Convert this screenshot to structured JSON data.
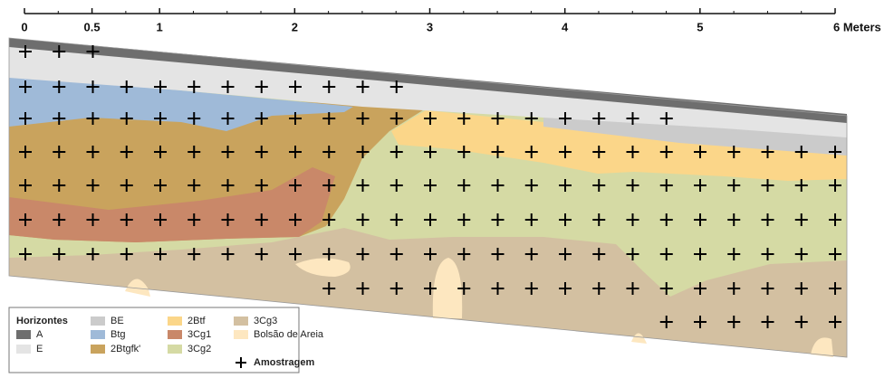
{
  "scale": {
    "ticks": [
      0,
      0.5,
      1,
      2,
      3,
      4,
      5,
      {
        "value": 6,
        "label": "6 Meters"
      }
    ]
  },
  "legend": {
    "title": "Horizontes",
    "items": [
      {
        "label": "A",
        "color": "#6e6e6e"
      },
      {
        "label": "E",
        "color": "#e4e4e4"
      },
      {
        "label": "BE",
        "color": "#cbcbcb"
      },
      {
        "label": "Btg",
        "color": "#9fbad8"
      },
      {
        "label": "2Btgfk'",
        "color": "#c9a35d"
      },
      {
        "label": "2Btf",
        "color": "#fbd689"
      },
      {
        "label": "3Cg1",
        "color": "#c98869"
      },
      {
        "label": "3Cg2",
        "color": "#d5daa4"
      },
      {
        "label": "3Cg3",
        "color": "#d3c0a1"
      },
      {
        "label": "Bolsão de Areia",
        "color": "#fde7c0"
      }
    ],
    "sampling": "Amostragem"
  }
}
